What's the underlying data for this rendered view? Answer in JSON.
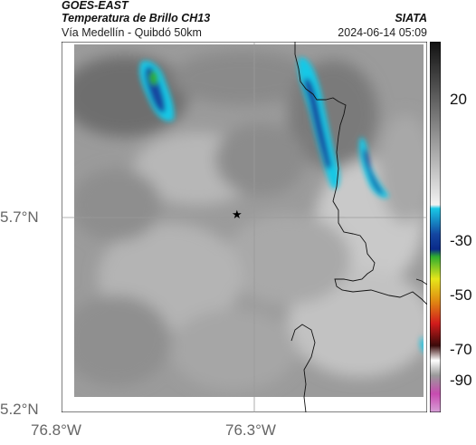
{
  "header": {
    "satellite": "GOES-EAST",
    "product": "Temperatura de Brillo CH13",
    "route": "Vía Medellín - Quibdó 50km",
    "org": "SIATA",
    "datetime": "2024-06-14 05:09"
  },
  "axes": {
    "lat_ticks": [
      "5.7°N",
      "5.2°N"
    ],
    "lon_ticks": [
      "76.8°W",
      "76.3°W"
    ]
  },
  "colorbar": {
    "labels": [
      "20",
      "-30",
      "-50",
      "-70",
      "-90"
    ]
  },
  "marker": {
    "symbol": "★"
  },
  "colors": {
    "cold_cyan": "#19c8e6",
    "deep_blue": "#1446a0",
    "green_core": "#2fae2f",
    "grid_line": "#9a9a9a",
    "border_line": "#000000"
  }
}
